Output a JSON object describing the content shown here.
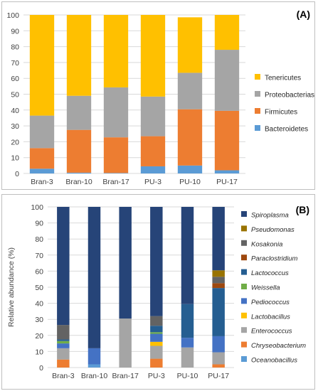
{
  "chart_data": [
    {
      "type": "bar",
      "stacked": true,
      "panel_label": "(A)",
      "categories": [
        "Bran-3",
        "Bran-10",
        "Bran-17",
        "PU-3",
        "PU-10",
        "PU-17"
      ],
      "ylim": [
        0,
        100
      ],
      "yticks": [
        "0",
        "10",
        "20",
        "30",
        "40",
        "50",
        "60",
        "70",
        "80",
        "90",
        "100"
      ],
      "grid": true,
      "legend_position": "right",
      "series": [
        {
          "name": "Bacteroidetes",
          "color": "#5b9bd5",
          "values": [
            3,
            0.5,
            0.3,
            4.5,
            5,
            2
          ]
        },
        {
          "name": "Firmicutes",
          "color": "#ed7d31",
          "values": [
            13,
            27,
            22.5,
            19,
            35.5,
            37.5
          ]
        },
        {
          "name": "Proteobacterias",
          "color": "#a5a5a5",
          "values": [
            20.5,
            21.5,
            31.5,
            25,
            23,
            38.5
          ]
        },
        {
          "name": "Tenericutes",
          "color": "#ffc000",
          "values": [
            63.5,
            51,
            45.7,
            51.5,
            35,
            22
          ]
        }
      ]
    },
    {
      "type": "bar",
      "stacked": true,
      "panel_label": "(B)",
      "categories": [
        "Bran-3",
        "Bran-10",
        "Bran-17",
        "PU-3",
        "PU-10",
        "PU-17"
      ],
      "ylabel": "Relative abundance (%)",
      "ylim": [
        0,
        100
      ],
      "yticks": [
        "0",
        "10",
        "20",
        "30",
        "40",
        "50",
        "60",
        "70",
        "80",
        "90",
        "100"
      ],
      "grid": true,
      "legend_position": "right",
      "series": [
        {
          "name": "Oceanobacillus",
          "color": "#5b9bd5",
          "values": [
            0,
            2,
            0,
            0,
            0,
            0
          ]
        },
        {
          "name": "Chryseobacterium",
          "color": "#ed7d31",
          "values": [
            5,
            0,
            0,
            5.5,
            0,
            2
          ]
        },
        {
          "name": "Enterococcus",
          "color": "#a5a5a5",
          "values": [
            7,
            0,
            30.5,
            8,
            12.5,
            7.5
          ]
        },
        {
          "name": "Lactobacillus",
          "color": "#ffc000",
          "values": [
            0,
            0,
            0,
            2.5,
            0,
            0
          ]
        },
        {
          "name": "Pediococcus",
          "color": "#4472c4",
          "values": [
            3,
            10,
            0,
            5,
            6,
            10
          ]
        },
        {
          "name": "Weissella",
          "color": "#70ad47",
          "values": [
            1.5,
            0,
            0,
            1,
            0,
            0
          ]
        },
        {
          "name": "Lactococcus",
          "color": "#255e91",
          "values": [
            1,
            0,
            0,
            4,
            21,
            30
          ]
        },
        {
          "name": "Paraclostridium",
          "color": "#9e480e",
          "values": [
            0,
            0,
            0,
            0,
            0,
            3
          ]
        },
        {
          "name": "Kosakonia",
          "color": "#636363",
          "values": [
            9,
            0,
            0,
            6,
            0,
            4
          ]
        },
        {
          "name": "Pseudomonas",
          "color": "#997300",
          "values": [
            0,
            0,
            0,
            0,
            0,
            4
          ]
        },
        {
          "name": "Spiroplasma",
          "color": "#264478",
          "values": [
            73.5,
            88,
            69.5,
            68,
            60.5,
            39.5
          ]
        }
      ]
    }
  ]
}
